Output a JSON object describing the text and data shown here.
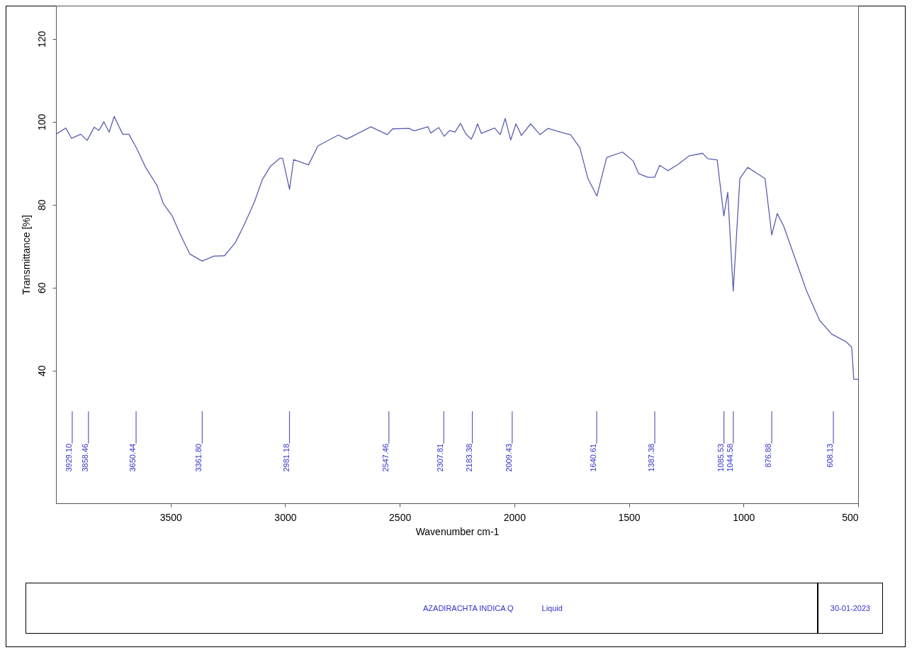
{
  "chart_data": {
    "type": "line",
    "xlabel": "Wavenumber cm-1",
    "ylabel": "Transmittance [%]",
    "xlim": [
      4000,
      500
    ],
    "ylim": [
      8,
      128
    ],
    "xticks": [
      3500,
      3000,
      2500,
      2000,
      1500,
      1000,
      500
    ],
    "yticks": [
      40,
      60,
      80,
      100,
      120
    ],
    "grid": false,
    "series": [
      {
        "color": "#5a5fb0",
        "x": [
          4000,
          3957,
          3932,
          3892,
          3864,
          3833,
          3813,
          3791,
          3768,
          3746,
          3709,
          3682,
          3648,
          3609,
          3559,
          3532,
          3493,
          3459,
          3416,
          3362,
          3312,
          3265,
          3218,
          3182,
          3134,
          3100,
          3064,
          3023,
          3011,
          2981,
          2963,
          2898,
          2857,
          2768,
          2732,
          2626,
          2555,
          2531,
          2460,
          2437,
          2377,
          2365,
          2330,
          2306,
          2283,
          2259,
          2235,
          2212,
          2188,
          2173,
          2161,
          2144,
          2086,
          2062,
          2040,
          2016,
          1993,
          1969,
          1929,
          1888,
          1854,
          1772,
          1755,
          1714,
          1679,
          1640,
          1597,
          1528,
          1481,
          1458,
          1418,
          1388,
          1366,
          1330,
          1284,
          1237,
          1179,
          1156,
          1115,
          1086,
          1069,
          1045,
          1016,
          982,
          906,
          877,
          853,
          824,
          725,
          668,
          615,
          551,
          528,
          519,
          500
        ],
        "values": [
          97.0,
          98.5,
          96.0,
          97.0,
          95.5,
          98.7,
          97.9,
          100.0,
          97.5,
          101.3,
          97.0,
          97.0,
          93.6,
          89.0,
          84.6,
          80.3,
          77.3,
          73.0,
          68.1,
          66.4,
          67.6,
          67.7,
          70.8,
          74.8,
          80.7,
          86.0,
          89.3,
          91.2,
          91.2,
          83.7,
          90.9,
          89.6,
          94.2,
          96.8,
          95.8,
          98.8,
          96.9,
          98.3,
          98.4,
          97.8,
          98.8,
          97.3,
          98.6,
          96.5,
          97.9,
          97.5,
          99.6,
          97.1,
          95.8,
          97.6,
          99.5,
          97.2,
          98.5,
          96.9,
          100.8,
          95.6,
          99.5,
          96.7,
          99.5,
          96.9,
          98.4,
          97.1,
          96.9,
          93.7,
          86.3,
          82.1,
          91.4,
          92.7,
          90.5,
          87.5,
          86.6,
          86.6,
          89.5,
          88.2,
          89.8,
          91.8,
          92.4,
          91.1,
          90.8,
          77.3,
          83.0,
          59.2,
          86.3,
          89.0,
          86.3,
          72.7,
          77.9,
          74.7,
          59.2,
          52.1,
          48.8,
          46.9,
          45.6,
          37.9,
          37.9
        ]
      }
    ],
    "annotations": [
      {
        "text": "3929.10",
        "x": 3929.1
      },
      {
        "text": "3858.46",
        "x": 3858.46
      },
      {
        "text": "3650.44",
        "x": 3650.44
      },
      {
        "text": "3361.80",
        "x": 3361.8
      },
      {
        "text": "2981.18",
        "x": 2981.18
      },
      {
        "text": "2547.46",
        "x": 2547.46
      },
      {
        "text": "2307.81",
        "x": 2307.81
      },
      {
        "text": "2183.38",
        "x": 2183.38
      },
      {
        "text": "2009.43",
        "x": 2009.43
      },
      {
        "text": "1640.61",
        "x": 1640.61
      },
      {
        "text": "1387.38",
        "x": 1387.38
      },
      {
        "text": "1085.53",
        "x": 1085.53
      },
      {
        "text": "1044.58",
        "x": 1044.58
      },
      {
        "text": "876.88",
        "x": 876.88
      },
      {
        "text": "608.13",
        "x": 608.13
      },
      "AZADIRACHTA INDICA Q",
      "Liquid",
      "30-01-2023"
    ]
  }
}
